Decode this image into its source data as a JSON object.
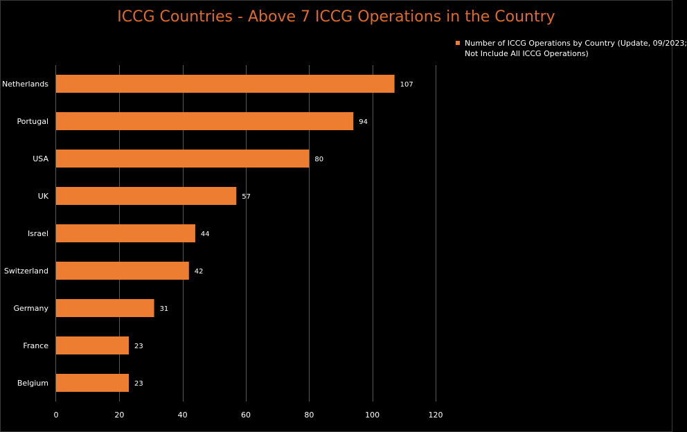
{
  "chart_data": {
    "type": "bar",
    "orientation": "horizontal",
    "title": "ICCG Countries - Above 7 ICCG Operations in the Country",
    "categories": [
      "Netherlands",
      "Portugal",
      "USA",
      "UK",
      "Israel",
      "Switzerland",
      "Germany",
      "France",
      "Belgium"
    ],
    "values": [
      107,
      94,
      80,
      57,
      44,
      42,
      31,
      23,
      23
    ],
    "series": [
      {
        "name": "Number of ICCG Operations by Country (Update, 09/2023; Not Include All ICCG Operations)",
        "values": [
          107,
          94,
          80,
          57,
          44,
          42,
          31,
          23,
          23
        ]
      }
    ],
    "legend": {
      "position": "top-right",
      "lines": [
        "Number of ICCG Operations by Country (Update, 09/2023;",
        "Not Include All ICCG Operations)"
      ]
    },
    "xlabel": "",
    "ylabel": "",
    "xlim": [
      0,
      120
    ],
    "xticks": [
      0,
      20,
      40,
      60,
      80,
      100,
      120
    ],
    "xtick_labels": [
      "0",
      "20",
      "40",
      "60",
      "80",
      "100",
      "120"
    ],
    "grid": true,
    "data_labels": true,
    "colors": {
      "bar": "#ED7D31",
      "title": "#E06A28",
      "background": "#000000",
      "gridline": "#595959",
      "text": "#ffffff"
    }
  }
}
